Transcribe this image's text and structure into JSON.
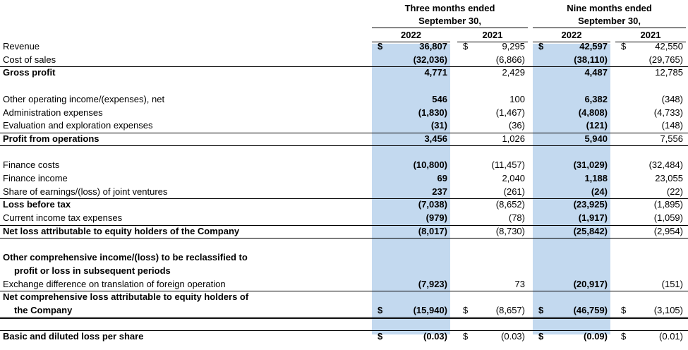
{
  "header": {
    "groups": [
      {
        "title_lines": [
          "Three months ended",
          "September 30,"
        ],
        "years": [
          "2022",
          "2021"
        ]
      },
      {
        "title_lines": [
          "Nine months ended",
          "September 30,"
        ],
        "years": [
          "2022",
          "2021"
        ]
      }
    ]
  },
  "sections": [
    {
      "rows": [
        {
          "label_lines": [
            "Revenue"
          ],
          "currency": "$",
          "values": [
            "36,807",
            "9,295",
            "42,597",
            "42,550"
          ]
        },
        {
          "label_lines": [
            "Cost of sales"
          ],
          "values": [
            "(32,036)",
            "(6,866)",
            "(38,110)",
            "(29,765)"
          ]
        },
        {
          "label_lines": [
            "Gross profit"
          ],
          "bold": true,
          "values": [
            "4,771",
            "2,429",
            "4,487",
            "12,785"
          ]
        }
      ]
    },
    {
      "rows": [
        {
          "label_lines": [
            "Other operating income/(expenses), net"
          ],
          "values": [
            "546",
            "100",
            "6,382",
            "(348)"
          ]
        },
        {
          "label_lines": [
            "Administration expenses"
          ],
          "values": [
            "(1,830)",
            "(1,467)",
            "(4,808)",
            "(4,733)"
          ]
        },
        {
          "label_lines": [
            "Evaluation and exploration expenses"
          ],
          "values": [
            "(31)",
            "(36)",
            "(121)",
            "(148)"
          ]
        },
        {
          "label_lines": [
            "Profit from operations"
          ],
          "bold": true,
          "values": [
            "3,456",
            "1,026",
            "5,940",
            "7,556"
          ]
        }
      ]
    },
    {
      "rows": [
        {
          "label_lines": [
            "Finance costs"
          ],
          "values": [
            "(10,800)",
            "(11,457)",
            "(31,029)",
            "(32,484)"
          ]
        },
        {
          "label_lines": [
            "Finance income"
          ],
          "values": [
            "69",
            "2,040",
            "1,188",
            "23,055"
          ]
        },
        {
          "label_lines": [
            "Share of earnings/(loss) of joint ventures"
          ],
          "values": [
            "237",
            "(261)",
            "(24)",
            "(22)"
          ]
        },
        {
          "label_lines": [
            "Loss before tax"
          ],
          "bold": true,
          "values": [
            "(7,038)",
            "(8,652)",
            "(23,925)",
            "(1,895)"
          ]
        },
        {
          "label_lines": [
            "Current income tax expenses"
          ],
          "values": [
            "(979)",
            "(78)",
            "(1,917)",
            "(1,059)"
          ]
        },
        {
          "label_lines": [
            "Net loss attributable to equity holders of the Company"
          ],
          "bold": true,
          "values": [
            "(8,017)",
            "(8,730)",
            "(25,842)",
            "(2,954)"
          ]
        }
      ]
    },
    {
      "rows": [
        {
          "label_lines": [
            "Other comprehensive income/(loss) to be reclassified to",
            "profit or loss in subsequent periods"
          ],
          "bold": true
        },
        {
          "label_lines": [
            "Exchange difference on translation of foreign operation"
          ],
          "values": [
            "(7,923)",
            "73",
            "(20,917)",
            "(151)"
          ]
        },
        {
          "label_lines": [
            "Net comprehensive loss attributable to equity holders of",
            "the Company"
          ],
          "bold": true,
          "currency": "$",
          "values": [
            "(15,940)",
            "(8,657)",
            "(46,759)",
            "(3,105)"
          ]
        }
      ]
    },
    {
      "rows": [
        {
          "label_lines": [
            "Basic and diluted loss per share"
          ],
          "bold": true,
          "currency": "$",
          "values": [
            "(0.03)",
            "(0.03)",
            "(0.09)",
            "(0.01)"
          ]
        }
      ]
    }
  ]
}
